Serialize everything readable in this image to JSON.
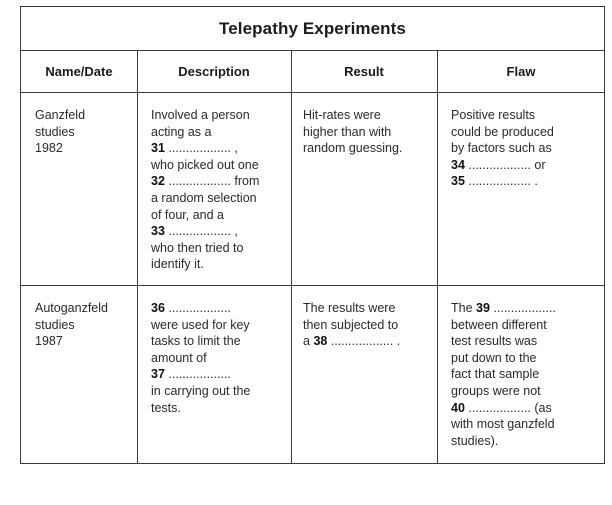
{
  "title": "Telepathy Experiments",
  "headers": {
    "name_date": "Name/Date",
    "description": "Description",
    "result": "Result",
    "flaw": "Flaw"
  },
  "rows": [
    {
      "name": [
        "Ganzfeld",
        "studies",
        "1982"
      ],
      "description": [
        "Involved a person",
        "acting as a",
        {
          "num": "31",
          "rest": " .................. ,"
        },
        "who picked out one",
        {
          "num": "32",
          "rest": " .................. from"
        },
        "a random selection",
        "of four, and a",
        {
          "num": "33",
          "rest": " .................. ,"
        },
        "who then tried to",
        "identify it."
      ],
      "result": [
        "Hit-rates were",
        "higher than with",
        "random guessing."
      ],
      "flaw": [
        "Positive results",
        "could be produced",
        "by factors such as",
        {
          "num": "34",
          "rest": " .................. or"
        },
        {
          "num": "35",
          "rest": " .................. ."
        }
      ]
    },
    {
      "name": [
        "Autoganzfeld",
        "studies",
        "1987"
      ],
      "description": [
        {
          "num": "36",
          "rest": " .................."
        },
        "were used for key",
        "tasks to limit the",
        "amount of",
        {
          "num": "37",
          "rest": " .................."
        },
        "in carrying out the",
        "tests."
      ],
      "result": [
        "The results were",
        "then subjected to",
        {
          "pre": "a ",
          "num": "38",
          "rest": " .................. ."
        }
      ],
      "flaw": [
        {
          "pre": "The ",
          "num": "39",
          "rest": " .................."
        },
        "between different",
        "test results was",
        "put down to the",
        "fact that sample",
        "groups were not",
        {
          "num": "40",
          "rest": " .................. (as"
        },
        "with most ganzfeld",
        "studies)."
      ]
    }
  ]
}
